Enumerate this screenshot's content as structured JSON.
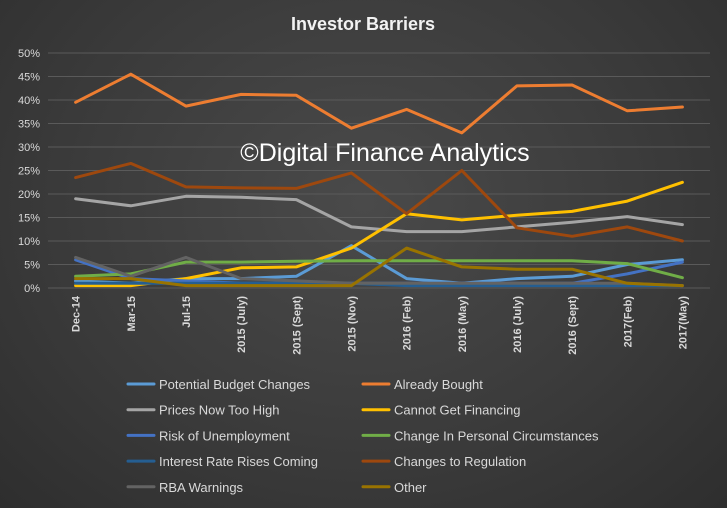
{
  "chart_data": {
    "type": "line",
    "title": "Investor Barriers",
    "watermark": "©Digital Finance Analytics",
    "xlabel": "",
    "ylabel": "",
    "ylim": [
      0,
      0.5
    ],
    "yticks": [
      "0%",
      "5%",
      "10%",
      "15%",
      "20%",
      "25%",
      "30%",
      "35%",
      "40%",
      "45%",
      "50%"
    ],
    "grid": true,
    "legend_position": "bottom",
    "categories": [
      "Dec-14",
      "Mar-15",
      "Jul-15",
      "2015 (July)",
      "2015 (Sept)",
      "2015 (Nov)",
      "2016 (Feb)",
      "2016 (May)",
      "2016 (July)",
      "2016 (Sept)",
      "2017(Feb)",
      "2017(May)"
    ],
    "series": [
      {
        "name": "Potential Budget Changes",
        "color": "#5b9bd5",
        "values": [
          0.015,
          0.01,
          0.02,
          0.02,
          0.025,
          0.09,
          0.02,
          0.01,
          0.02,
          0.025,
          0.05,
          0.06
        ]
      },
      {
        "name": "Already Bought",
        "color": "#ed7d31",
        "values": [
          0.395,
          0.455,
          0.387,
          0.412,
          0.41,
          0.34,
          0.38,
          0.33,
          0.43,
          0.432,
          0.377,
          0.385
        ]
      },
      {
        "name": "Prices Now Too High",
        "color": "#a5a5a5",
        "values": [
          0.19,
          0.175,
          0.195,
          0.193,
          0.188,
          0.13,
          0.12,
          0.12,
          0.13,
          0.14,
          0.152,
          0.135
        ]
      },
      {
        "name": "Cannot Get Financing",
        "color": "#ffc000",
        "values": [
          0.005,
          0.005,
          0.02,
          0.043,
          0.045,
          0.085,
          0.158,
          0.145,
          0.155,
          0.163,
          0.185,
          0.225
        ]
      },
      {
        "name": "Risk of Unemployment",
        "color": "#4472c4",
        "values": [
          0.06,
          0.02,
          0.015,
          0.01,
          0.01,
          0.01,
          0.01,
          0.01,
          0.01,
          0.01,
          0.03,
          0.055
        ]
      },
      {
        "name": "Change In Personal Circumstances",
        "color": "#70ad47",
        "values": [
          0.025,
          0.03,
          0.055,
          0.055,
          0.057,
          0.058,
          0.058,
          0.058,
          0.058,
          0.058,
          0.052,
          0.022
        ]
      },
      {
        "name": "Interest Rate Rises Coming",
        "color": "#255e91",
        "values": [
          0.01,
          0.01,
          0.01,
          0.01,
          0.01,
          0.01,
          0.005,
          0.005,
          0.005,
          0.005,
          0.005,
          0.005
        ]
      },
      {
        "name": "Changes to Regulation",
        "color": "#9e480e",
        "values": [
          0.235,
          0.265,
          0.215,
          0.213,
          0.212,
          0.245,
          0.158,
          0.25,
          0.128,
          0.11,
          0.13,
          0.1
        ]
      },
      {
        "name": "RBA Warnings",
        "color": "#636363",
        "values": [
          0.065,
          0.025,
          0.065,
          0.02,
          0.015,
          0.01,
          0.01,
          0.01,
          0.01,
          0.01,
          0.01,
          0.005
        ]
      },
      {
        "name": "Other",
        "color": "#997300",
        "values": [
          0.02,
          0.02,
          0.005,
          0.005,
          0.005,
          0.005,
          0.085,
          0.045,
          0.04,
          0.04,
          0.01,
          0.005
        ]
      }
    ]
  }
}
